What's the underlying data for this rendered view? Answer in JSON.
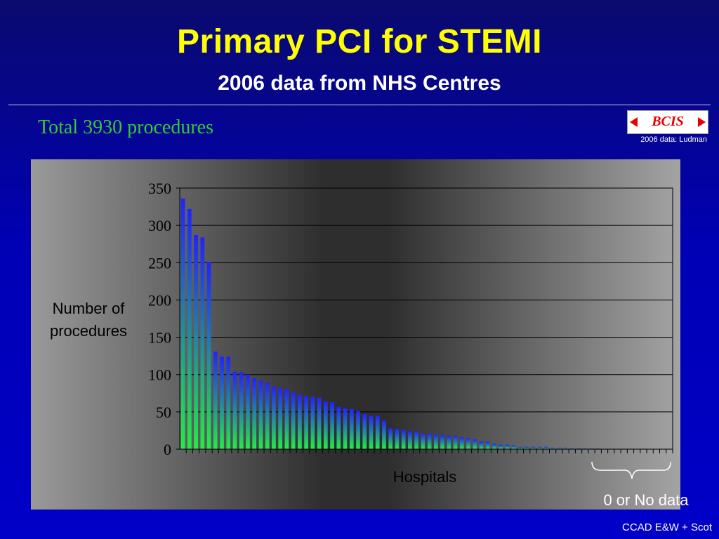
{
  "slide": {
    "title": "Primary PCI for STEMI",
    "subtitle": "2006 data from NHS Centres",
    "total_text": "Total 3930 procedures",
    "logo_text": "BCIS",
    "credit": "2006 data: Ludman",
    "footer": "CCAD E&W + Scot",
    "bracket_label": "0 or No data",
    "colors": {
      "background": "#0000c8",
      "title": "#ffff00",
      "total": "#33cc33",
      "logo": "#e60000"
    }
  },
  "chart_data": {
    "type": "bar",
    "title": "",
    "xlabel": "Hospitals",
    "ylabel": "Number of procedures",
    "ylim": [
      0,
      350
    ],
    "yticks": [
      0,
      50,
      100,
      150,
      200,
      250,
      300,
      350
    ],
    "grid": true,
    "bar_gradient": [
      "#2222ff",
      "#22ee44"
    ],
    "values": [
      336,
      322,
      287,
      284,
      251,
      131,
      124,
      124,
      104,
      103,
      100,
      95,
      92,
      89,
      84,
      82,
      81,
      76,
      73,
      71,
      70,
      69,
      64,
      63,
      57,
      55,
      54,
      51,
      47,
      45,
      45,
      38,
      28,
      27,
      26,
      24,
      24,
      21,
      21,
      20,
      19,
      18,
      18,
      16,
      15,
      13,
      10,
      10,
      7,
      6,
      6,
      5,
      3,
      3,
      3,
      3,
      3,
      2,
      2,
      2,
      1,
      1,
      1,
      1,
      1,
      0,
      0,
      0,
      0,
      0,
      0,
      0,
      0,
      0,
      0,
      0
    ]
  }
}
